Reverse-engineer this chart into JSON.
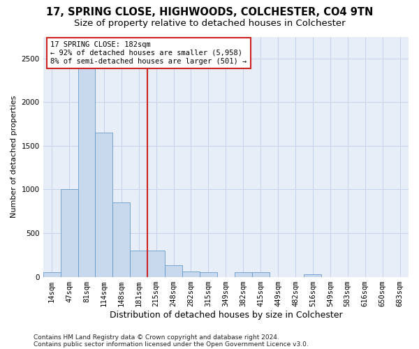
{
  "title1": "17, SPRING CLOSE, HIGHWOODS, COLCHESTER, CO4 9TN",
  "title2": "Size of property relative to detached houses in Colchester",
  "xlabel": "Distribution of detached houses by size in Colchester",
  "ylabel": "Number of detached properties",
  "categories": [
    "14sqm",
    "47sqm",
    "81sqm",
    "114sqm",
    "148sqm",
    "181sqm",
    "215sqm",
    "248sqm",
    "282sqm",
    "315sqm",
    "349sqm",
    "382sqm",
    "415sqm",
    "449sqm",
    "482sqm",
    "516sqm",
    "549sqm",
    "583sqm",
    "616sqm",
    "650sqm",
    "683sqm"
  ],
  "values": [
    55,
    1000,
    2450,
    1650,
    850,
    300,
    300,
    130,
    60,
    50,
    0,
    50,
    50,
    0,
    0,
    25,
    0,
    0,
    0,
    0,
    0
  ],
  "bar_color": "#c8d9ee",
  "bar_edge_color": "#6699cc",
  "grid_color": "#c8d4e8",
  "background_color": "#e8eef8",
  "vline_x": 5.5,
  "vline_color": "#cc2222",
  "annotation_text": "17 SPRING CLOSE: 182sqm\n← 92% of detached houses are smaller (5,958)\n8% of semi-detached houses are larger (501) →",
  "annotation_box_color": "#cc2222",
  "footnote1": "Contains HM Land Registry data © Crown copyright and database right 2024.",
  "footnote2": "Contains public sector information licensed under the Open Government Licence v3.0.",
  "ylim": [
    0,
    2750
  ],
  "yticks": [
    0,
    500,
    1000,
    1500,
    2000,
    2500
  ],
  "title1_fontsize": 10.5,
  "title2_fontsize": 9.5,
  "xlabel_fontsize": 9,
  "ylabel_fontsize": 8,
  "tick_fontsize": 7.5,
  "annotation_fontsize": 7.5,
  "footnote_fontsize": 6.5
}
